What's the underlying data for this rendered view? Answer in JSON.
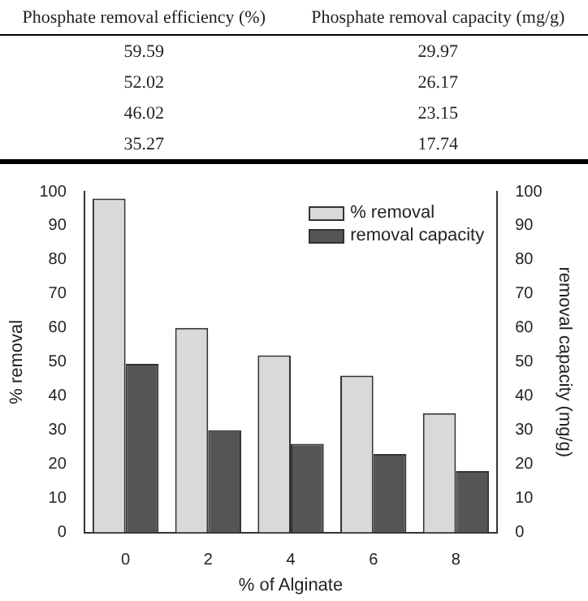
{
  "chart_data": {
    "type": "bar",
    "xlabel": "% of Alginate",
    "ylabel": "% removal",
    "y2label": "removal capacity (mg/g)",
    "categories": [
      "0",
      "2",
      "4",
      "6",
      "8"
    ],
    "series": [
      {
        "name": "% removal",
        "color": "#d9d9d9",
        "values": [
          98,
          60,
          52,
          46,
          35
        ]
      },
      {
        "name": "removal capacity",
        "color": "#555555",
        "axis": "y2",
        "values": [
          49.5,
          30,
          26,
          23,
          18
        ]
      }
    ],
    "annotations": [
      "Phosphate removal efficiency (%)",
      "Phosphate removal capacity (mg/g)",
      "59.59",
      "29.97",
      "52.02",
      "26.17",
      "46.02",
      "23.15",
      "35.27",
      "17.74"
    ],
    "ylim": [
      0,
      100
    ],
    "yticks": [
      0,
      10,
      20,
      30,
      40,
      50,
      60,
      70,
      80,
      90,
      100
    ],
    "y2lim": [
      0,
      100
    ],
    "y2ticks": [
      0,
      10,
      20,
      30,
      40,
      50,
      60,
      70,
      80,
      90,
      100
    ],
    "legend": "top right",
    "grid": false
  }
}
